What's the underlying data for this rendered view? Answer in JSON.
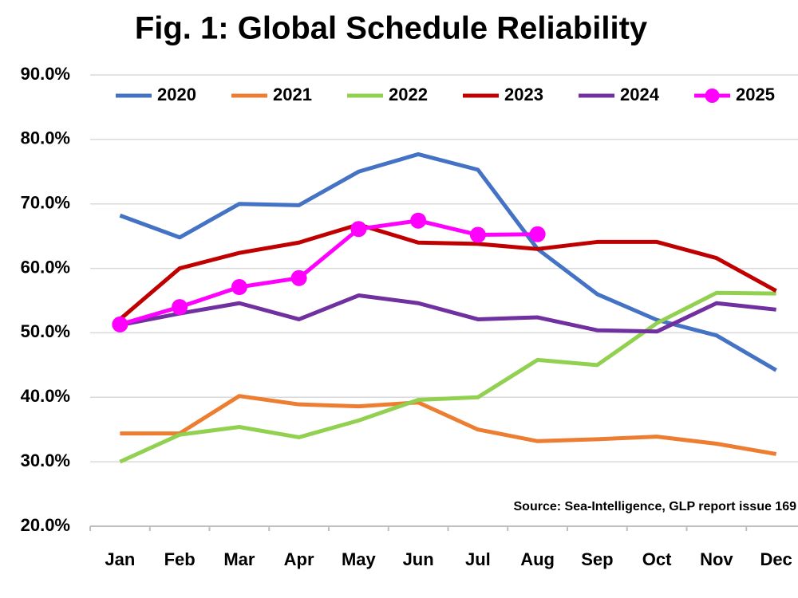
{
  "chart_data": {
    "type": "line",
    "title": "Fig. 1: Global Schedule Reliability",
    "annotation": "Source: Sea-Intelligence, GLP report issue 169",
    "categories": [
      "Jan",
      "Feb",
      "Mar",
      "Apr",
      "May",
      "Jun",
      "Jul",
      "Aug",
      "Sep",
      "Oct",
      "Nov",
      "Dec"
    ],
    "series": [
      {
        "name": "2020",
        "color": "#4472c4",
        "values": [
          68.2,
          64.8,
          70.0,
          69.8,
          75.0,
          77.7,
          75.3,
          63.0,
          56.0,
          52.0,
          49.6,
          44.2
        ]
      },
      {
        "name": "2021",
        "color": "#ed7d31",
        "values": [
          34.4,
          34.4,
          40.2,
          38.9,
          38.6,
          39.2,
          35.0,
          33.2,
          33.5,
          33.9,
          32.8,
          31.2
        ]
      },
      {
        "name": "2022",
        "color": "#92d050",
        "values": [
          30.0,
          34.2,
          35.4,
          33.8,
          36.4,
          39.6,
          40.0,
          45.8,
          45.0,
          51.5,
          56.2,
          56.1
        ]
      },
      {
        "name": "2023",
        "color": "#c00000",
        "values": [
          52.1,
          60.0,
          62.4,
          64.0,
          66.8,
          64.0,
          63.8,
          63.0,
          64.1,
          64.1,
          61.6,
          56.5
        ]
      },
      {
        "name": "2024",
        "color": "#7030a0",
        "values": [
          51.2,
          53.0,
          54.6,
          52.1,
          55.8,
          54.6,
          52.1,
          52.4,
          50.4,
          50.2,
          54.6,
          53.6
        ]
      },
      {
        "name": "2025",
        "color": "#ff00ff",
        "markers": true,
        "values": [
          51.3,
          54.0,
          57.1,
          58.5,
          66.1,
          67.4,
          65.2,
          65.3,
          null,
          null,
          null,
          null
        ]
      }
    ],
    "ylim": [
      20,
      90
    ],
    "yticks": [
      {
        "value": 20,
        "label": "20.0%"
      },
      {
        "value": 30,
        "label": "30.0%"
      },
      {
        "value": 40,
        "label": "40.0%"
      },
      {
        "value": 50,
        "label": "50.0%"
      },
      {
        "value": 60,
        "label": "60.0%"
      },
      {
        "value": 70,
        "label": "70.0%"
      },
      {
        "value": 80,
        "label": "80.0%"
      },
      {
        "value": 90,
        "label": "90.0%"
      }
    ],
    "grid": true,
    "legend": "top"
  }
}
